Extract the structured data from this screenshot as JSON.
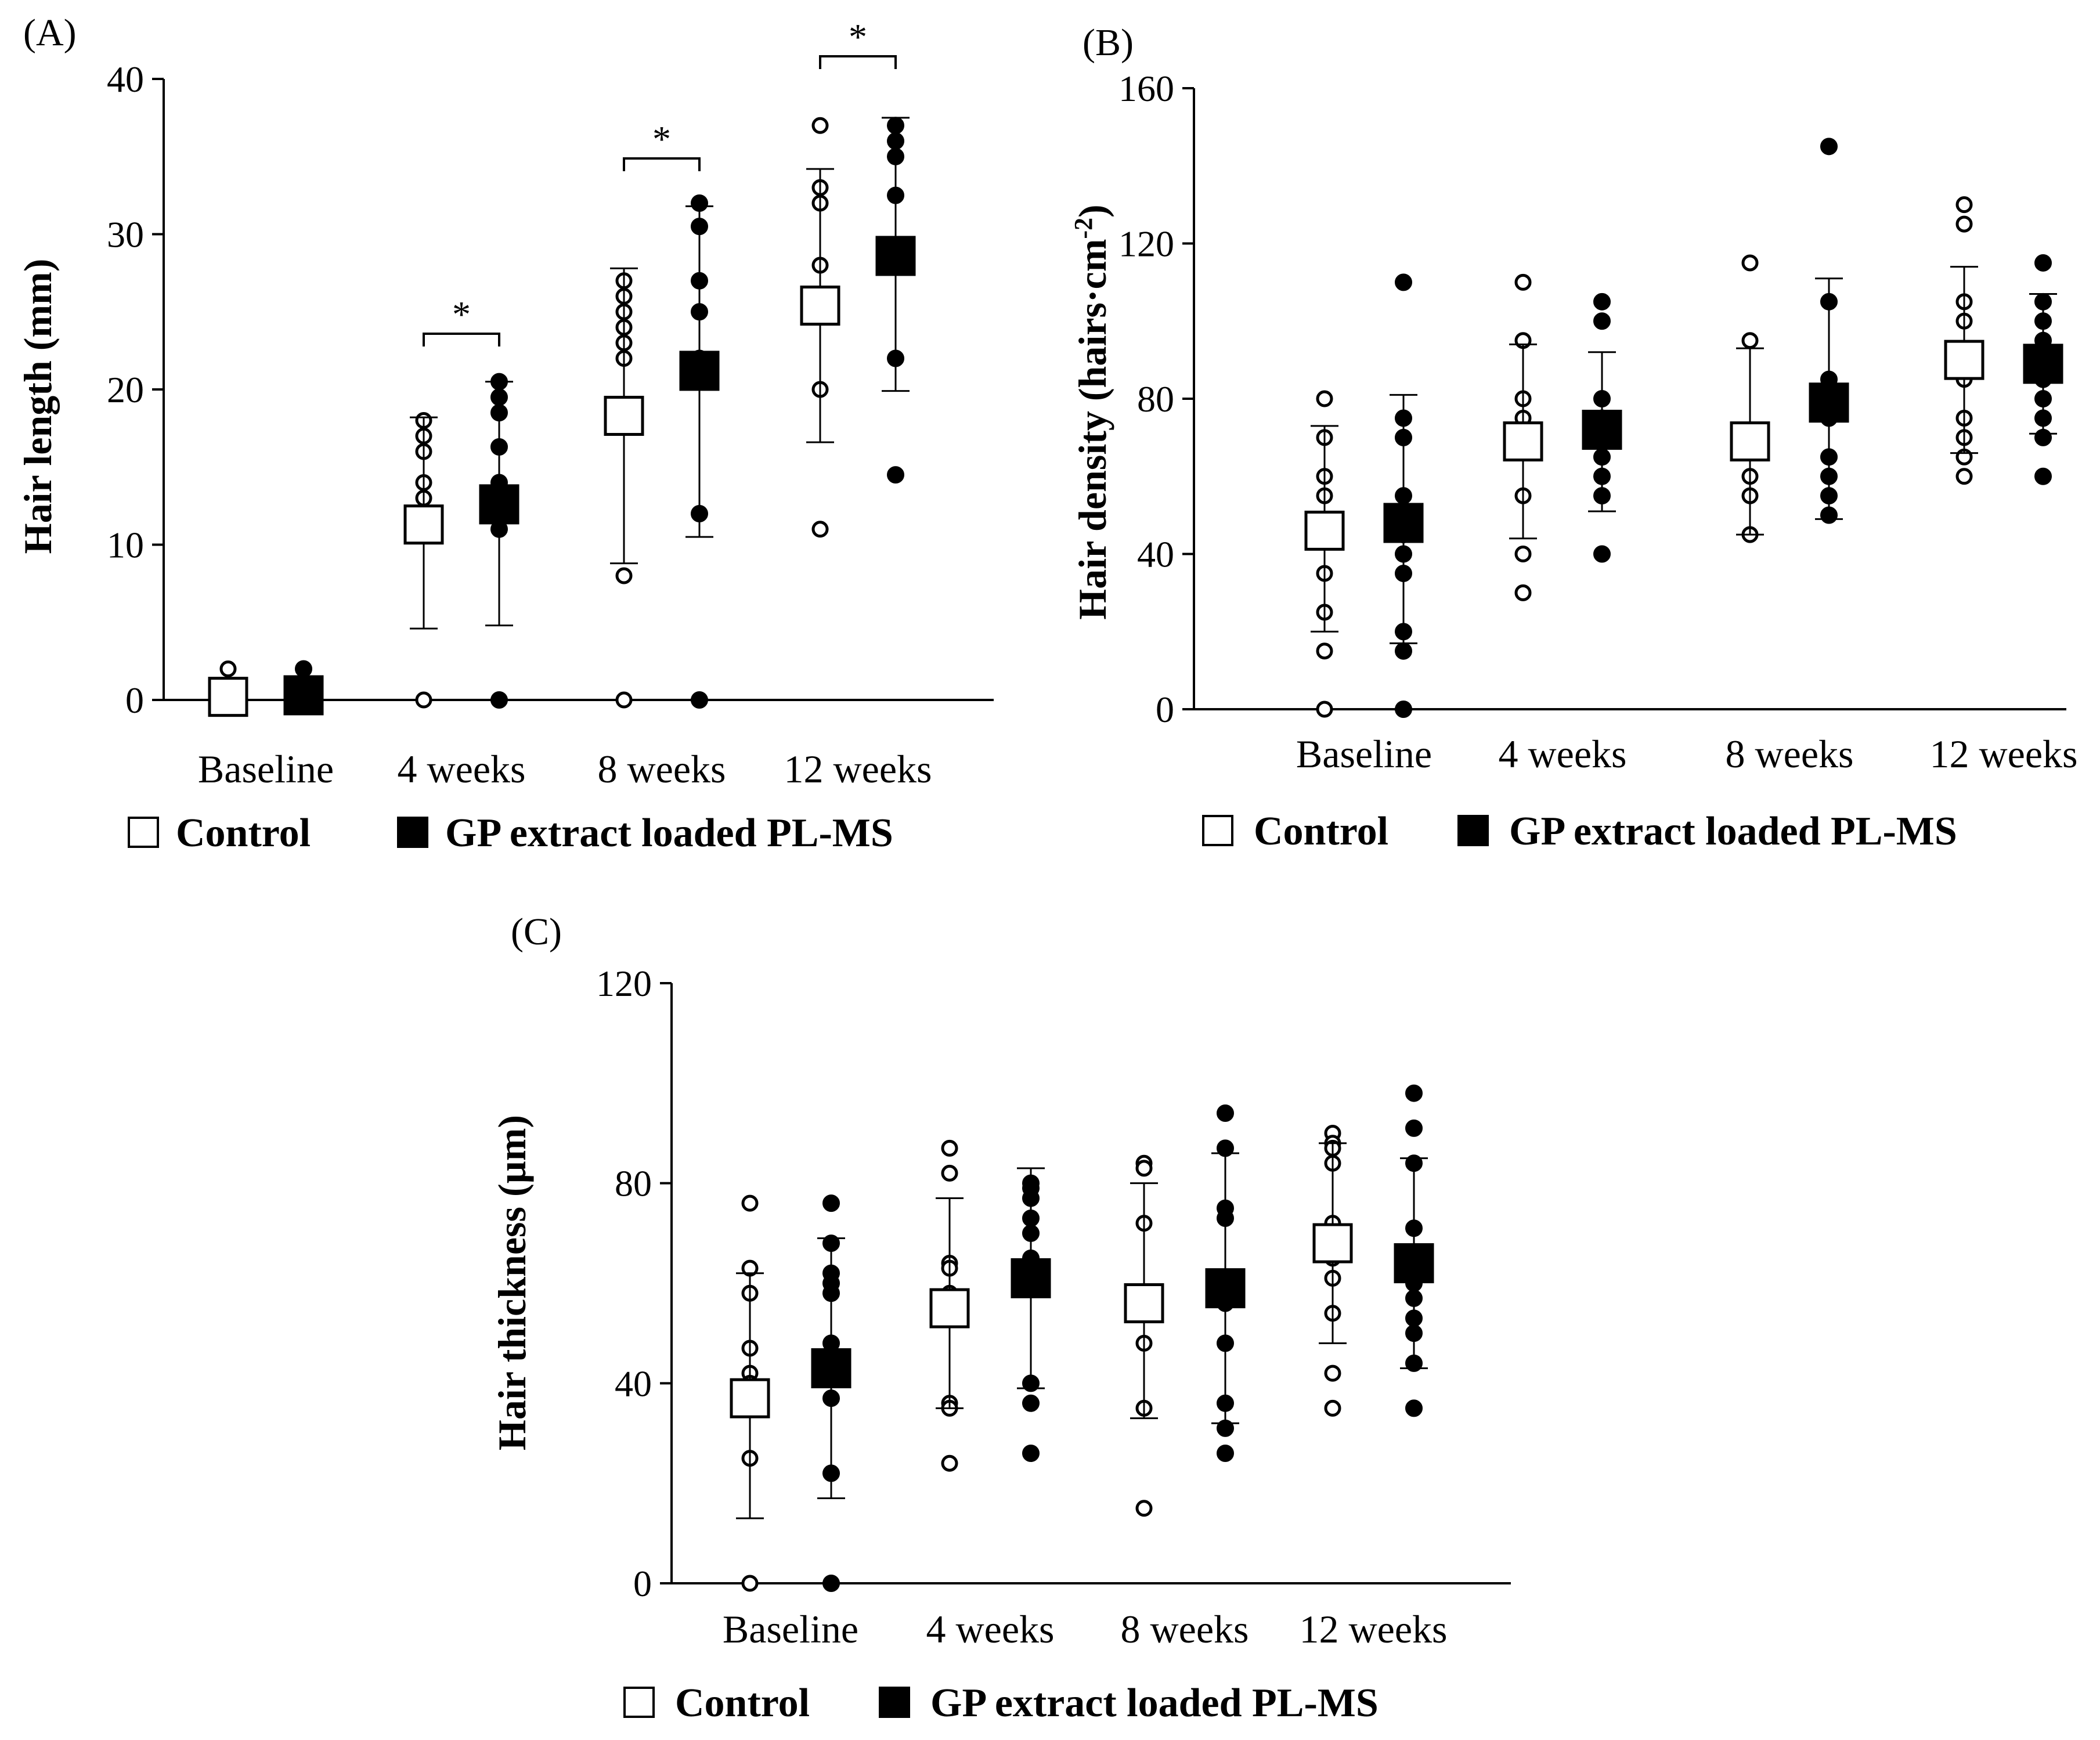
{
  "colors": {
    "ink": "#000000",
    "control_fill": "#ffffff",
    "treated_fill": "#000000"
  },
  "chart_data": [
    {
      "type": "scatter",
      "panel_label": "(A)",
      "ylabel": "Hair length (mm)",
      "ylim": [
        0,
        40
      ],
      "yticks": [
        0,
        10,
        20,
        30,
        40
      ],
      "categories": [
        "Baseline",
        "4 weeks",
        "8 weeks",
        "12 weeks"
      ],
      "legend": [
        "Control",
        "GP extract loaded PL-MS"
      ],
      "significance": [
        {
          "category": "4 weeks",
          "label": "*"
        },
        {
          "category": "8 weeks",
          "label": "*"
        },
        {
          "category": "12 weeks",
          "label": "*"
        }
      ],
      "series": [
        {
          "name": "Control",
          "means": [
            0.2,
            11.3,
            18.3,
            25.4
          ],
          "sd_upper": [
            0.6,
            18.2,
            27.8,
            34.2
          ],
          "sd_lower": [
            0,
            4.6,
            8.8,
            16.6
          ],
          "points": [
            [
              2,
              0
            ],
            [
              18,
              17,
              16,
              14,
              13,
              0
            ],
            [
              27,
              26,
              25,
              24,
              23,
              22,
              8,
              0
            ],
            [
              37,
              33,
              32,
              28,
              26,
              20,
              11
            ]
          ]
        },
        {
          "name": "GP extract loaded PL-MS",
          "means": [
            0.3,
            12.6,
            21.2,
            28.6
          ],
          "sd_upper": [
            0.8,
            20.5,
            31.8,
            37.5
          ],
          "sd_lower": [
            0,
            4.8,
            10.5,
            19.9
          ],
          "points": [
            [
              2,
              0
            ],
            [
              20.5,
              19.5,
              18.5,
              16.3,
              14,
              13,
              12,
              11,
              0
            ],
            [
              32,
              30.5,
              27,
              25,
              22,
              21,
              12,
              0
            ],
            [
              37,
              36,
              35,
              32.5,
              28,
              22,
              14.5
            ]
          ]
        }
      ]
    },
    {
      "type": "scatter",
      "panel_label": "(B)",
      "ylabel": "Hair density (hairs·cm",
      "ylabel_sup": "-2",
      "ylabel_end": ")",
      "ylim": [
        0,
        160
      ],
      "yticks": [
        0,
        40,
        80,
        120,
        160
      ],
      "categories": [
        "Baseline",
        "4 weeks",
        "8 weeks",
        "12 weeks"
      ],
      "legend": [
        "Control",
        "GP extract loaded PL-MS"
      ],
      "series": [
        {
          "name": "Control",
          "means": [
            46,
            69,
            69,
            90
          ],
          "sd_upper": [
            73,
            94,
            93,
            114
          ],
          "sd_lower": [
            20,
            44,
            45,
            66
          ],
          "points": [
            [
              80,
              70,
              60,
              55,
              45,
              35,
              25,
              15,
              0
            ],
            [
              110,
              95,
              80,
              75,
              55,
              40,
              30
            ],
            [
              115,
              95,
              70,
              60,
              55,
              45
            ],
            [
              130,
              125,
              105,
              100,
              85,
              75,
              70,
              65,
              60
            ]
          ]
        },
        {
          "name": "GP extract loaded PL-MS",
          "means": [
            48,
            72,
            79,
            89
          ],
          "sd_upper": [
            81,
            92,
            111,
            107
          ],
          "sd_lower": [
            17,
            51,
            49,
            71
          ],
          "points": [
            [
              110,
              75,
              70,
              55,
              50,
              45,
              40,
              35,
              20,
              15,
              0
            ],
            [
              105,
              100,
              80,
              75,
              65,
              60,
              55,
              40
            ],
            [
              145,
              105,
              85,
              75,
              65,
              60,
              55,
              50
            ],
            [
              115,
              105,
              100,
              95,
              90,
              85,
              80,
              75,
              70,
              60
            ]
          ]
        }
      ]
    },
    {
      "type": "scatter",
      "panel_label": "(C)",
      "ylabel": "Hair thickness (µm)",
      "ylim": [
        0,
        120
      ],
      "yticks": [
        0,
        40,
        80,
        120
      ],
      "categories": [
        "Baseline",
        "4 weeks",
        "8 weeks",
        "12 weeks"
      ],
      "legend": [
        "Control",
        "GP extract loaded PL-MS"
      ],
      "series": [
        {
          "name": "Control",
          "means": [
            37,
            55,
            56,
            68
          ],
          "sd_upper": [
            62,
            77,
            80,
            88
          ],
          "sd_lower": [
            13,
            35,
            33,
            48
          ],
          "points": [
            [
              76,
              63,
              58,
              47,
              42,
              40,
              35,
              25,
              0
            ],
            [
              87,
              82,
              64,
              63,
              58,
              36,
              35,
              24
            ],
            [
              84,
              83,
              72,
              57,
              48,
              35,
              15
            ],
            [
              90,
              88,
              87,
              84,
              72,
              70,
              65,
              61,
              54,
              42,
              35
            ]
          ]
        },
        {
          "name": "GP extract loaded PL-MS",
          "means": [
            43,
            61,
            59,
            64
          ],
          "sd_upper": [
            69,
            83,
            86,
            85
          ],
          "sd_lower": [
            17,
            39,
            32,
            43
          ],
          "points": [
            [
              76,
              68,
              62,
              60,
              58,
              48,
              45,
              42,
              37,
              22,
              0
            ],
            [
              80,
              79,
              77,
              73,
              70,
              65,
              62,
              59,
              40,
              36,
              26
            ],
            [
              94,
              87,
              75,
              73,
              60,
              56,
              48,
              36,
              31,
              26
            ],
            [
              98,
              91,
              84,
              71,
              66,
              60,
              57,
              53,
              50,
              44,
              35
            ]
          ]
        }
      ]
    }
  ]
}
